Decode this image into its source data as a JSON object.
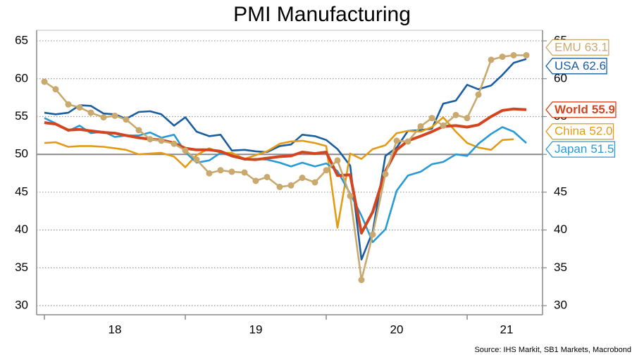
{
  "chart_data": {
    "type": "line",
    "title": "PMI Manufacturing",
    "source": "Source: IHS Markit, SB1 Markets, Macrobond",
    "x": [
      2018,
      2018.08,
      2018.17,
      2018.25,
      2018.33,
      2018.42,
      2018.5,
      2018.58,
      2018.67,
      2018.75,
      2018.83,
      2018.92,
      2019,
      2019.08,
      2019.17,
      2019.25,
      2019.33,
      2019.42,
      2019.5,
      2019.58,
      2019.67,
      2019.75,
      2019.83,
      2019.92,
      2020,
      2020.08,
      2020.17,
      2020.25,
      2020.33,
      2020.42,
      2020.5,
      2020.58,
      2020.67,
      2020.75,
      2020.83,
      2020.92,
      2021,
      2021.08,
      2021.17,
      2021.25,
      2021.33,
      2021.42
    ],
    "xlim": [
      2017.945,
      2021.535
    ],
    "xticks": [
      {
        "value": 2018.5,
        "label": "18"
      },
      {
        "value": 2019.5,
        "label": "19"
      },
      {
        "value": 2020.5,
        "label": "20"
      },
      {
        "value": 2021.28,
        "label": "21"
      }
    ],
    "ylim": [
      28.8,
      66.4
    ],
    "yticks": [
      30,
      35,
      40,
      45,
      50,
      55,
      60,
      65
    ],
    "y2lim": [
      28.8,
      66.4
    ],
    "y2ticks": [
      30,
      35,
      40,
      45,
      50,
      55,
      60,
      65
    ],
    "reference_line": 50,
    "grid": true,
    "series": [
      {
        "name": "USA",
        "color": "#1a5ea0",
        "end_label": "62.6",
        "values": [
          55.5,
          55.3,
          55.5,
          56.5,
          56.4,
          55.4,
          55.3,
          54.7,
          55.6,
          55.7,
          55.3,
          53.8,
          54.9,
          53.0,
          52.4,
          52.6,
          50.5,
          50.6,
          50.4,
          50.3,
          51.1,
          51.3,
          52.6,
          52.4,
          51.9,
          50.7,
          48.5,
          36.1,
          39.8,
          49.8,
          50.9,
          53.1,
          53.2,
          53.4,
          56.7,
          57.1,
          59.2,
          58.6,
          59.1,
          60.5,
          62.1,
          62.6
        ]
      },
      {
        "name": "China",
        "color": "#e39b14",
        "end_label": "52.0",
        "values": [
          51.5,
          51.6,
          51.0,
          51.1,
          51.1,
          51.0,
          50.8,
          50.6,
          50.0,
          50.1,
          50.2,
          49.7,
          48.3,
          49.9,
          50.8,
          50.2,
          50.2,
          49.4,
          49.9,
          50.4,
          51.4,
          51.7,
          51.8,
          51.5,
          51.1,
          40.3,
          50.1,
          49.4,
          50.7,
          51.2,
          52.8,
          53.1,
          53.0,
          53.6,
          54.9,
          53.0,
          51.5,
          50.9,
          50.6,
          51.9,
          52.0,
          null
        ]
      },
      {
        "name": "Japan",
        "color": "#2a9ad6",
        "end_label": "51.5",
        "values": [
          54.8,
          54.1,
          53.1,
          53.8,
          52.8,
          53.0,
          52.3,
          52.5,
          52.5,
          52.9,
          52.2,
          52.6,
          50.3,
          48.9,
          49.2,
          50.2,
          49.8,
          49.3,
          49.4,
          49.3,
          48.9,
          48.4,
          48.9,
          48.4,
          48.8,
          47.8,
          44.8,
          41.9,
          38.4,
          40.1,
          45.2,
          47.2,
          47.7,
          48.7,
          49.0,
          50.0,
          49.8,
          51.4,
          52.7,
          53.6,
          53.0,
          51.5
        ]
      },
      {
        "name": "World",
        "color": "#d2451e",
        "end_label": "55.9",
        "values": [
          54.2,
          54.0,
          53.2,
          53.3,
          53.1,
          52.9,
          52.8,
          52.5,
          52.2,
          52.0,
          51.9,
          51.5,
          50.8,
          50.6,
          50.6,
          50.4,
          49.8,
          49.4,
          49.3,
          49.5,
          49.7,
          49.8,
          50.3,
          50.1,
          50.3,
          47.2,
          47.3,
          39.6,
          42.4,
          47.8,
          50.6,
          51.8,
          52.4,
          53.0,
          53.7,
          53.8,
          53.6,
          53.9,
          55.0,
          55.8,
          56.0,
          55.9
        ]
      },
      {
        "name": "EMU",
        "color": "#c9a96e",
        "end_label": "63.1",
        "markers": true,
        "values": [
          59.6,
          58.6,
          56.6,
          56.2,
          55.5,
          54.9,
          55.1,
          54.6,
          53.2,
          52.0,
          51.8,
          51.4,
          50.5,
          49.3,
          47.5,
          47.9,
          47.7,
          47.6,
          46.5,
          47.0,
          45.7,
          45.9,
          46.9,
          46.3,
          47.9,
          49.2,
          44.5,
          33.4,
          39.4,
          47.4,
          51.8,
          51.7,
          53.7,
          54.8,
          53.8,
          55.2,
          54.8,
          57.9,
          62.5,
          62.9,
          63.1,
          63.1
        ]
      }
    ]
  }
}
